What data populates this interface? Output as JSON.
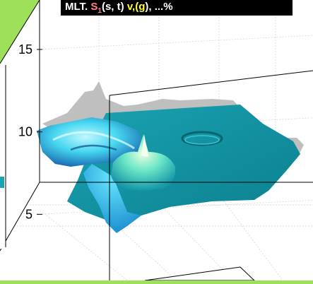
{
  "colors": {
    "background": "#9fe05a",
    "plot_box": "#ffffff",
    "axis_line": "#000000",
    "grid": "#cccccc",
    "surface_base": "#118c9c",
    "surface_high": "#5ef0ff",
    "peak_light": "#d8ffd0",
    "shadow": "#bdbdbd",
    "title_bar": "#000000",
    "title_text": "#ffffff",
    "title_accent_pink": "#ff8080",
    "title_accent_yellow": "#ffff40"
  },
  "title": {
    "segments": [
      {
        "text": "MLT. ",
        "color": "#ffffff"
      },
      {
        "text": "S",
        "color": "#ff8080"
      },
      {
        "text": "1",
        "color": "#ff8080"
      },
      {
        "text": "(s, t)   ",
        "color": "#ffffff"
      },
      {
        "text": "v,(g",
        "color": "#ffff40"
      },
      {
        "text": "), ...%",
        "color": "#ffffff"
      }
    ]
  },
  "chart_data": {
    "type": "surface",
    "title": "",
    "xlabel": "",
    "ylabel": "",
    "zlabel": "",
    "zlim": [
      3,
      18
    ],
    "z_ticks": [
      5,
      10,
      15
    ],
    "grid": true,
    "view": "3d-perspective",
    "surface_features": [
      {
        "name": "",
        "kind": "ridge",
        "z_peak": 9.0
      },
      {
        "name": "",
        "kind": "spike",
        "z_peak": 8.5
      },
      {
        "name": "",
        "kind": "ring-depression",
        "z_peak": 6.8
      }
    ],
    "baseline_z": 6.2
  }
}
